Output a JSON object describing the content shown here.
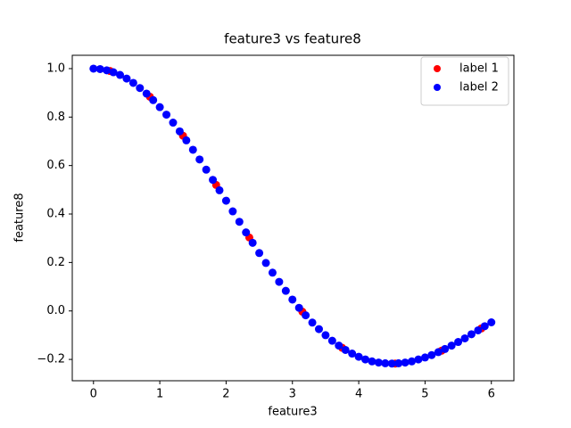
{
  "chart_data": {
    "type": "scatter",
    "title": "feature3 vs feature8",
    "x_label": "feature3",
    "y_label": "feature8",
    "series": [
      {
        "name": "label 1",
        "color": "#ff0000",
        "x": [
          0.25,
          0.85,
          1.35,
          1.85,
          2.35,
          3.15,
          3.75,
          4.55,
          5.25,
          5.85
        ],
        "values": [
          0.99,
          0.884,
          0.723,
          0.52,
          0.303,
          -0.003,
          -0.152,
          -0.217,
          -0.164,
          -0.072
        ]
      },
      {
        "name": "label 2",
        "color": "#0000ff",
        "x": [
          0,
          0.1,
          0.2,
          0.3,
          0.4,
          0.5,
          0.6,
          0.7,
          0.8,
          0.9,
          1.0,
          1.1,
          1.2,
          1.3,
          1.4,
          1.5,
          1.6,
          1.7,
          1.8,
          1.9,
          2.0,
          2.1,
          2.2,
          2.3,
          2.4,
          2.5,
          2.6,
          2.7,
          2.8,
          2.9,
          3.0,
          3.1,
          3.2,
          3.3,
          3.4,
          3.5,
          3.6,
          3.7,
          3.8,
          3.9,
          4.0,
          4.1,
          4.2,
          4.3,
          4.4,
          4.5,
          4.6,
          4.7,
          4.8,
          4.9,
          5.0,
          5.1,
          5.2,
          5.3,
          5.4,
          5.5,
          5.6,
          5.7,
          5.8,
          5.9,
          6.0
        ],
        "values": [
          1.0,
          0.998,
          0.993,
          0.985,
          0.974,
          0.959,
          0.941,
          0.92,
          0.897,
          0.87,
          0.841,
          0.81,
          0.777,
          0.741,
          0.704,
          0.665,
          0.625,
          0.583,
          0.541,
          0.498,
          0.455,
          0.411,
          0.368,
          0.324,
          0.281,
          0.239,
          0.198,
          0.158,
          0.12,
          0.083,
          0.047,
          0.013,
          -0.018,
          -0.048,
          -0.075,
          -0.1,
          -0.123,
          -0.143,
          -0.161,
          -0.176,
          -0.189,
          -0.2,
          -0.208,
          -0.213,
          -0.216,
          -0.217,
          -0.216,
          -0.213,
          -0.208,
          -0.2,
          -0.192,
          -0.182,
          -0.17,
          -0.157,
          -0.143,
          -0.128,
          -0.113,
          -0.096,
          -0.08,
          -0.063,
          -0.047
        ]
      }
    ],
    "xlim": [
      -0.32,
      6.34
    ],
    "ylim": [
      -0.288,
      1.055
    ],
    "xticks": [
      0,
      1,
      2,
      3,
      4,
      5,
      6
    ],
    "yticks": [
      {
        "value": -0.2,
        "label": "−0.2"
      },
      {
        "value": 0,
        "label": "0.0"
      },
      0.2,
      0.4,
      0.6,
      0.8,
      {
        "value": 1,
        "label": "1.0"
      }
    ],
    "legend": "upper right"
  }
}
